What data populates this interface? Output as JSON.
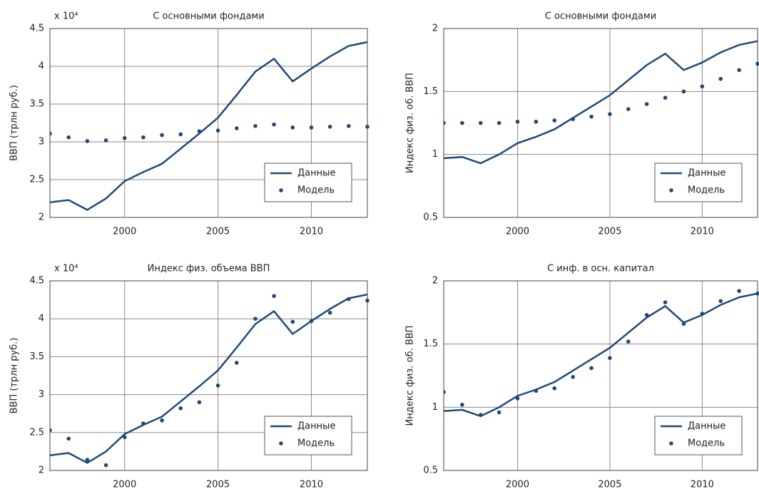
{
  "chart_data": [
    {
      "type": "line",
      "title": "С основными фондами",
      "annotation": "x 10⁴",
      "ylabel": "ВВП (трлн руб.)",
      "x": [
        1996,
        1997,
        1998,
        1999,
        2000,
        2001,
        2002,
        2003,
        2004,
        2005,
        2006,
        2007,
        2008,
        2009,
        2010,
        2011,
        2012,
        2013
      ],
      "series": [
        {
          "name": "Данные",
          "color": "#1f4a78",
          "style": "line",
          "values": [
            2.2,
            2.23,
            2.1,
            2.25,
            2.48,
            2.6,
            2.71,
            2.91,
            3.11,
            3.32,
            3.62,
            3.93,
            4.1,
            3.8,
            3.97,
            4.13,
            4.27,
            4.32
          ]
        },
        {
          "name": "Модель",
          "color": "#1f4a78",
          "style": "markers",
          "values": [
            3.11,
            3.06,
            3.01,
            3.02,
            3.05,
            3.06,
            3.09,
            3.1,
            3.14,
            3.15,
            3.18,
            3.21,
            3.23,
            3.19,
            3.19,
            3.2,
            3.21,
            3.2
          ]
        }
      ],
      "xlim": [
        1996,
        2013
      ],
      "xticks": [
        2000,
        2005,
        2010
      ],
      "ylim": [
        2,
        4.5
      ],
      "yticks": [
        2,
        2.5,
        3,
        3.5,
        4,
        4.5
      ],
      "grid": true,
      "legend": "lower right"
    },
    {
      "type": "line",
      "title": "С основными фондами",
      "ylabel": "Индекс физ. об. ВВП",
      "x": [
        1996,
        1997,
        1998,
        1999,
        2000,
        2001,
        2002,
        2003,
        2004,
        2005,
        2006,
        2007,
        2008,
        2009,
        2010,
        2011,
        2012,
        2013
      ],
      "series": [
        {
          "name": "Данные",
          "color": "#1f4a78",
          "style": "line",
          "values": [
            0.97,
            0.98,
            0.93,
            1.0,
            1.09,
            1.14,
            1.2,
            1.29,
            1.38,
            1.47,
            1.59,
            1.71,
            1.8,
            1.67,
            1.73,
            1.81,
            1.87,
            1.9
          ]
        },
        {
          "name": "Модель",
          "color": "#1f4a78",
          "style": "markers",
          "values": [
            1.25,
            1.25,
            1.25,
            1.25,
            1.26,
            1.26,
            1.27,
            1.28,
            1.3,
            1.32,
            1.36,
            1.4,
            1.45,
            1.5,
            1.54,
            1.6,
            1.67,
            1.72
          ]
        }
      ],
      "xlim": [
        1996,
        2013
      ],
      "xticks": [
        2000,
        2005,
        2010
      ],
      "ylim": [
        0.5,
        2
      ],
      "yticks": [
        0.5,
        1,
        1.5,
        2
      ],
      "grid": true,
      "legend": "lower right"
    },
    {
      "type": "line",
      "title": "Индекс физ. объема ВВП",
      "annotation": "x 10⁴",
      "ylabel": "ВВП (трлн руб.)",
      "x": [
        1996,
        1997,
        1998,
        1999,
        2000,
        2001,
        2002,
        2003,
        2004,
        2005,
        2006,
        2007,
        2008,
        2009,
        2010,
        2011,
        2012,
        2013
      ],
      "series": [
        {
          "name": "Данные",
          "color": "#1f4a78",
          "style": "line",
          "values": [
            2.2,
            2.23,
            2.1,
            2.25,
            2.48,
            2.6,
            2.71,
            2.91,
            3.11,
            3.32,
            3.62,
            3.93,
            4.1,
            3.8,
            3.97,
            4.13,
            4.27,
            4.32
          ]
        },
        {
          "name": "Модель",
          "color": "#1f4a78",
          "style": "markers",
          "values": [
            2.53,
            2.42,
            2.14,
            2.07,
            2.44,
            2.62,
            2.66,
            2.82,
            2.9,
            3.12,
            3.42,
            4.0,
            4.3,
            3.96,
            3.97,
            4.08,
            4.26,
            4.24
          ]
        }
      ],
      "xlim": [
        1996,
        2013
      ],
      "xticks": [
        2000,
        2005,
        2010
      ],
      "ylim": [
        2,
        4.5
      ],
      "yticks": [
        2,
        2.5,
        3,
        3.5,
        4,
        4.5
      ],
      "grid": true,
      "legend": "lower right"
    },
    {
      "type": "line",
      "title": "С инф. в осн. капитал",
      "ylabel": "Индекс физ. об. ВВП",
      "x": [
        1996,
        1997,
        1998,
        1999,
        2000,
        2001,
        2002,
        2003,
        2004,
        2005,
        2006,
        2007,
        2008,
        2009,
        2010,
        2011,
        2012,
        2013
      ],
      "series": [
        {
          "name": "Данные",
          "color": "#1f4a78",
          "style": "line",
          "values": [
            0.97,
            0.98,
            0.93,
            1.0,
            1.09,
            1.14,
            1.2,
            1.29,
            1.38,
            1.47,
            1.59,
            1.71,
            1.8,
            1.67,
            1.73,
            1.81,
            1.87,
            1.9
          ]
        },
        {
          "name": "Модель",
          "color": "#1f4a78",
          "style": "markers",
          "values": [
            1.12,
            1.02,
            0.94,
            0.96,
            1.07,
            1.13,
            1.15,
            1.24,
            1.31,
            1.39,
            1.52,
            1.73,
            1.83,
            1.66,
            1.74,
            1.84,
            1.92,
            1.9
          ]
        }
      ],
      "xlim": [
        1996,
        2013
      ],
      "xticks": [
        2000,
        2005,
        2010
      ],
      "ylim": [
        0.5,
        2
      ],
      "yticks": [
        0.5,
        1,
        1.5,
        2
      ],
      "grid": true,
      "legend": "lower right"
    }
  ]
}
